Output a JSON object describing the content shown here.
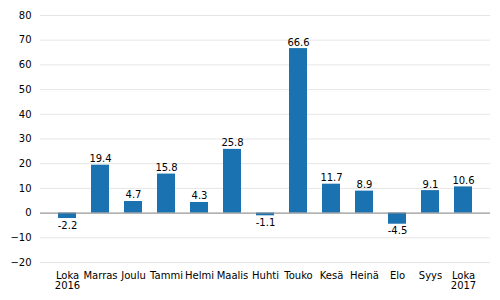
{
  "chart_data": {
    "type": "bar",
    "categories": [
      "Loka\n2016",
      "Marras",
      "Joulu",
      "Tammi",
      "Helmi",
      "Maalis",
      "Huhti",
      "Touko",
      "Kesä",
      "Heinä",
      "Elo",
      "Syys",
      "Loka\n2017"
    ],
    "values": [
      -2.2,
      19.4,
      4.7,
      15.8,
      4.3,
      25.8,
      -1.1,
      66.6,
      11.7,
      8.9,
      -4.5,
      9.1,
      10.6
    ],
    "color": "#1a72b0",
    "ylim": [
      -20,
      80
    ],
    "yticks": [
      -20,
      -10,
      0,
      10,
      20,
      30,
      40,
      50,
      60,
      70,
      80
    ],
    "grid": true,
    "data_labels": true
  }
}
